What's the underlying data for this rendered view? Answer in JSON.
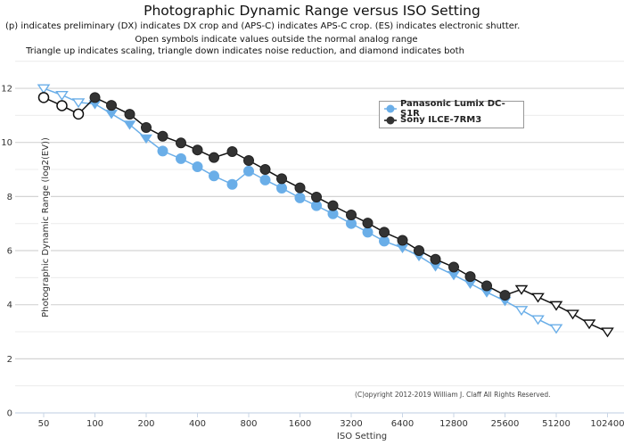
{
  "chart_data": {
    "type": "line",
    "title": "Photographic Dynamic Range versus ISO Setting",
    "subtitles": [
      "(p) indicates preliminary (DX) indicates DX crop and (APS-C) indicates APS-C crop. (ES) indicates electronic shutter.",
      "Open symbols indicate values outside the normal analog range",
      "Triangle up indicates scaling, triangle down indicates noise reduction, and diamond indicates both"
    ],
    "xlabel": "ISO Setting",
    "ylabel": "Photographic Dynamic Range (log2(EV))",
    "x_scale": "log2",
    "xlim": [
      40,
      128000
    ],
    "ylim": [
      0,
      13
    ],
    "x_ticks": [
      50,
      100,
      200,
      400,
      800,
      1600,
      3200,
      6400,
      12800,
      25600,
      51200,
      102400
    ],
    "y_ticks": [
      0,
      2,
      4,
      6,
      8,
      10,
      12
    ],
    "grid": true,
    "legend_position": "top-right",
    "copyright": "(C)opyright 2012-2019 William J. Claff All Rights Reserved.",
    "series": [
      {
        "name": "Panasonic Lumix DC-S1R",
        "color": "#6aaee8",
        "points": [
          {
            "x": 50,
            "y": 12.0,
            "marker": "triangle-down",
            "open": true
          },
          {
            "x": 64,
            "y": 11.75,
            "marker": "triangle-down",
            "open": true
          },
          {
            "x": 80,
            "y": 11.48,
            "marker": "triangle-down",
            "open": true
          },
          {
            "x": 100,
            "y": 11.42,
            "marker": "triangle-down",
            "open": false
          },
          {
            "x": 125,
            "y": 11.06,
            "marker": "triangle-down",
            "open": false
          },
          {
            "x": 160,
            "y": 10.66,
            "marker": "triangle-down",
            "open": false
          },
          {
            "x": 200,
            "y": 10.15,
            "marker": "triangle-down",
            "open": false
          },
          {
            "x": 250,
            "y": 9.68,
            "marker": "circle",
            "open": false
          },
          {
            "x": 320,
            "y": 9.4,
            "marker": "circle",
            "open": false
          },
          {
            "x": 400,
            "y": 9.1,
            "marker": "circle",
            "open": false
          },
          {
            "x": 500,
            "y": 8.76,
            "marker": "circle",
            "open": false
          },
          {
            "x": 640,
            "y": 8.45,
            "marker": "circle",
            "open": false
          },
          {
            "x": 800,
            "y": 8.94,
            "marker": "circle",
            "open": false
          },
          {
            "x": 1000,
            "y": 8.61,
            "marker": "circle",
            "open": false
          },
          {
            "x": 1250,
            "y": 8.31,
            "marker": "circle",
            "open": false
          },
          {
            "x": 1600,
            "y": 7.95,
            "marker": "circle",
            "open": false
          },
          {
            "x": 2000,
            "y": 7.66,
            "marker": "circle",
            "open": false
          },
          {
            "x": 2500,
            "y": 7.36,
            "marker": "circle",
            "open": false
          },
          {
            "x": 3200,
            "y": 7.0,
            "marker": "circle",
            "open": false
          },
          {
            "x": 4000,
            "y": 6.68,
            "marker": "circle",
            "open": false
          },
          {
            "x": 5000,
            "y": 6.35,
            "marker": "circle",
            "open": false
          },
          {
            "x": 6400,
            "y": 6.1,
            "marker": "triangle-down",
            "open": false
          },
          {
            "x": 8000,
            "y": 5.8,
            "marker": "triangle-down",
            "open": false
          },
          {
            "x": 10000,
            "y": 5.42,
            "marker": "triangle-down",
            "open": false
          },
          {
            "x": 12800,
            "y": 5.1,
            "marker": "triangle-down",
            "open": false
          },
          {
            "x": 16000,
            "y": 4.78,
            "marker": "triangle-down",
            "open": false
          },
          {
            "x": 20000,
            "y": 4.46,
            "marker": "triangle-down",
            "open": false
          },
          {
            "x": 25600,
            "y": 4.14,
            "marker": "triangle-down",
            "open": false
          },
          {
            "x": 32000,
            "y": 3.8,
            "marker": "triangle-down",
            "open": true
          },
          {
            "x": 40000,
            "y": 3.46,
            "marker": "triangle-down",
            "open": true
          },
          {
            "x": 51200,
            "y": 3.13,
            "marker": "triangle-down",
            "open": true
          }
        ]
      },
      {
        "name": "Sony ILCE-7RM3",
        "color": "#333333",
        "points": [
          {
            "x": 50,
            "y": 11.66,
            "marker": "circle",
            "open": true
          },
          {
            "x": 64,
            "y": 11.36,
            "marker": "circle",
            "open": true
          },
          {
            "x": 80,
            "y": 11.05,
            "marker": "circle",
            "open": true
          },
          {
            "x": 100,
            "y": 11.66,
            "marker": "circle",
            "open": false
          },
          {
            "x": 125,
            "y": 11.37,
            "marker": "circle",
            "open": false
          },
          {
            "x": 160,
            "y": 11.04,
            "marker": "circle",
            "open": false
          },
          {
            "x": 200,
            "y": 10.55,
            "marker": "circle",
            "open": false
          },
          {
            "x": 250,
            "y": 10.23,
            "marker": "circle",
            "open": false
          },
          {
            "x": 320,
            "y": 9.98,
            "marker": "circle",
            "open": false
          },
          {
            "x": 400,
            "y": 9.72,
            "marker": "circle",
            "open": false
          },
          {
            "x": 500,
            "y": 9.44,
            "marker": "circle",
            "open": false
          },
          {
            "x": 640,
            "y": 9.66,
            "marker": "circle",
            "open": false
          },
          {
            "x": 800,
            "y": 9.33,
            "marker": "circle",
            "open": false
          },
          {
            "x": 1000,
            "y": 9.0,
            "marker": "circle",
            "open": false
          },
          {
            "x": 1250,
            "y": 8.66,
            "marker": "circle",
            "open": false
          },
          {
            "x": 1600,
            "y": 8.32,
            "marker": "circle",
            "open": false
          },
          {
            "x": 2000,
            "y": 7.98,
            "marker": "circle",
            "open": false
          },
          {
            "x": 2500,
            "y": 7.66,
            "marker": "circle",
            "open": false
          },
          {
            "x": 3200,
            "y": 7.32,
            "marker": "circle",
            "open": false
          },
          {
            "x": 4000,
            "y": 7.02,
            "marker": "circle",
            "open": false
          },
          {
            "x": 5000,
            "y": 6.68,
            "marker": "circle",
            "open": false
          },
          {
            "x": 6400,
            "y": 6.38,
            "marker": "circle",
            "open": false
          },
          {
            "x": 8000,
            "y": 6.0,
            "marker": "circle",
            "open": false
          },
          {
            "x": 10000,
            "y": 5.68,
            "marker": "circle",
            "open": false
          },
          {
            "x": 12800,
            "y": 5.39,
            "marker": "circle",
            "open": false
          },
          {
            "x": 16000,
            "y": 5.04,
            "marker": "circle",
            "open": false
          },
          {
            "x": 20000,
            "y": 4.7,
            "marker": "circle",
            "open": false
          },
          {
            "x": 25600,
            "y": 4.35,
            "marker": "circle",
            "open": false
          },
          {
            "x": 32000,
            "y": 4.57,
            "marker": "triangle-down",
            "open": true
          },
          {
            "x": 40000,
            "y": 4.28,
            "marker": "triangle-down",
            "open": true
          },
          {
            "x": 51200,
            "y": 3.98,
            "marker": "triangle-down",
            "open": true
          },
          {
            "x": 64000,
            "y": 3.66,
            "marker": "triangle-down",
            "open": true
          },
          {
            "x": 80000,
            "y": 3.3,
            "marker": "triangle-down",
            "open": true
          },
          {
            "x": 102400,
            "y": 3.0,
            "marker": "triangle-down",
            "open": true
          }
        ]
      }
    ]
  }
}
